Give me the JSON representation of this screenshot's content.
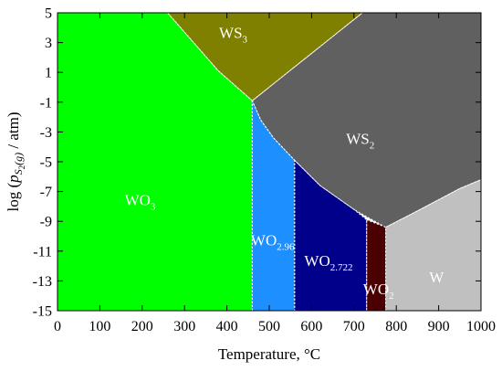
{
  "chart_data": {
    "type": "area",
    "title": "",
    "xlabel": "Temperature, °C",
    "ylabel_prefix": "log (",
    "ylabel_var": "p",
    "ylabel_sub": "S",
    "ylabel_subsub": "2",
    "ylabel_subsub_tail": "(g)",
    "ylabel_suffix": " / atm)",
    "xlim": [
      0,
      1000
    ],
    "ylim": [
      -15,
      5
    ],
    "x_ticks": [
      0,
      100,
      200,
      300,
      400,
      500,
      600,
      700,
      800,
      900,
      1000
    ],
    "y_ticks": [
      5,
      3,
      1,
      -1,
      -3,
      -5,
      -7,
      -9,
      -11,
      -13,
      -15
    ],
    "grid": false,
    "legend": "none",
    "regions": [
      {
        "name": "WO3",
        "label_main": "WO",
        "label_sub": "3",
        "color": "#00ff00",
        "label_color": "#ffffff",
        "label_at": [
          195,
          -7.9
        ],
        "polygon": [
          [
            0,
            -15
          ],
          [
            0,
            5
          ],
          [
            260,
            5
          ],
          [
            380,
            1.1
          ],
          [
            460,
            -0.9
          ],
          [
            460,
            -15
          ]
        ]
      },
      {
        "name": "WS3",
        "label_main": "WS",
        "label_sub": "3",
        "color": "#808000",
        "label_color": "#ffffff",
        "label_at": [
          415,
          3.3
        ],
        "polygon": [
          [
            260,
            5
          ],
          [
            720,
            5
          ],
          [
            460,
            -0.9
          ],
          [
            380,
            1.1
          ]
        ]
      },
      {
        "name": "WS2",
        "label_main": "WS",
        "label_sub": "2",
        "color": "#606060",
        "label_color": "#ffffff",
        "label_at": [
          715,
          -3.8
        ],
        "polygon": [
          [
            460,
            -0.9
          ],
          [
            720,
            5
          ],
          [
            1000,
            5
          ],
          [
            1000,
            -6.2
          ],
          [
            950,
            -6.8
          ],
          [
            850,
            -8.3
          ],
          [
            775,
            -9.4
          ],
          [
            700,
            -8.2
          ],
          [
            620,
            -6.6
          ],
          [
            560,
            -4.9
          ],
          [
            510,
            -3.4
          ],
          [
            480,
            -2.2
          ]
        ]
      },
      {
        "name": "WO2.96",
        "label_main": "WO",
        "label_sub": "2.96",
        "color": "#1e8fff",
        "label_color": "#ffffff",
        "label_at": [
          508,
          -10.6
        ],
        "polygon": [
          [
            460,
            -0.9
          ],
          [
            480,
            -2.2
          ],
          [
            510,
            -3.4
          ],
          [
            560,
            -4.9
          ],
          [
            560,
            -15
          ],
          [
            460,
            -15
          ]
        ]
      },
      {
        "name": "WO2.722",
        "label_main": "WO",
        "label_sub": "2.722",
        "color": "#00008b",
        "label_color": "#ffffff",
        "label_at": [
          640,
          -12.0
        ],
        "polygon": [
          [
            560,
            -4.9
          ],
          [
            620,
            -6.6
          ],
          [
            700,
            -8.2
          ],
          [
            730,
            -8.9
          ],
          [
            730,
            -15
          ],
          [
            560,
            -15
          ]
        ]
      },
      {
        "name": "WO2",
        "label_main": "WO",
        "label_sub": "2",
        "color": "#4a0000",
        "label_color": "#ffffff",
        "label_at": [
          758,
          -13.9
        ],
        "polygon": [
          [
            730,
            -8.9
          ],
          [
            775,
            -9.4
          ],
          [
            775,
            -15
          ],
          [
            730,
            -15
          ]
        ]
      },
      {
        "name": "W",
        "label_main": "W",
        "label_sub": "",
        "color": "#c0c0c0",
        "label_color": "#ffffff",
        "label_at": [
          895,
          -13.1
        ],
        "polygon": [
          [
            775,
            -9.4
          ],
          [
            850,
            -8.3
          ],
          [
            950,
            -6.8
          ],
          [
            1000,
            -6.2
          ],
          [
            1000,
            -15
          ],
          [
            775,
            -15
          ]
        ]
      }
    ]
  }
}
